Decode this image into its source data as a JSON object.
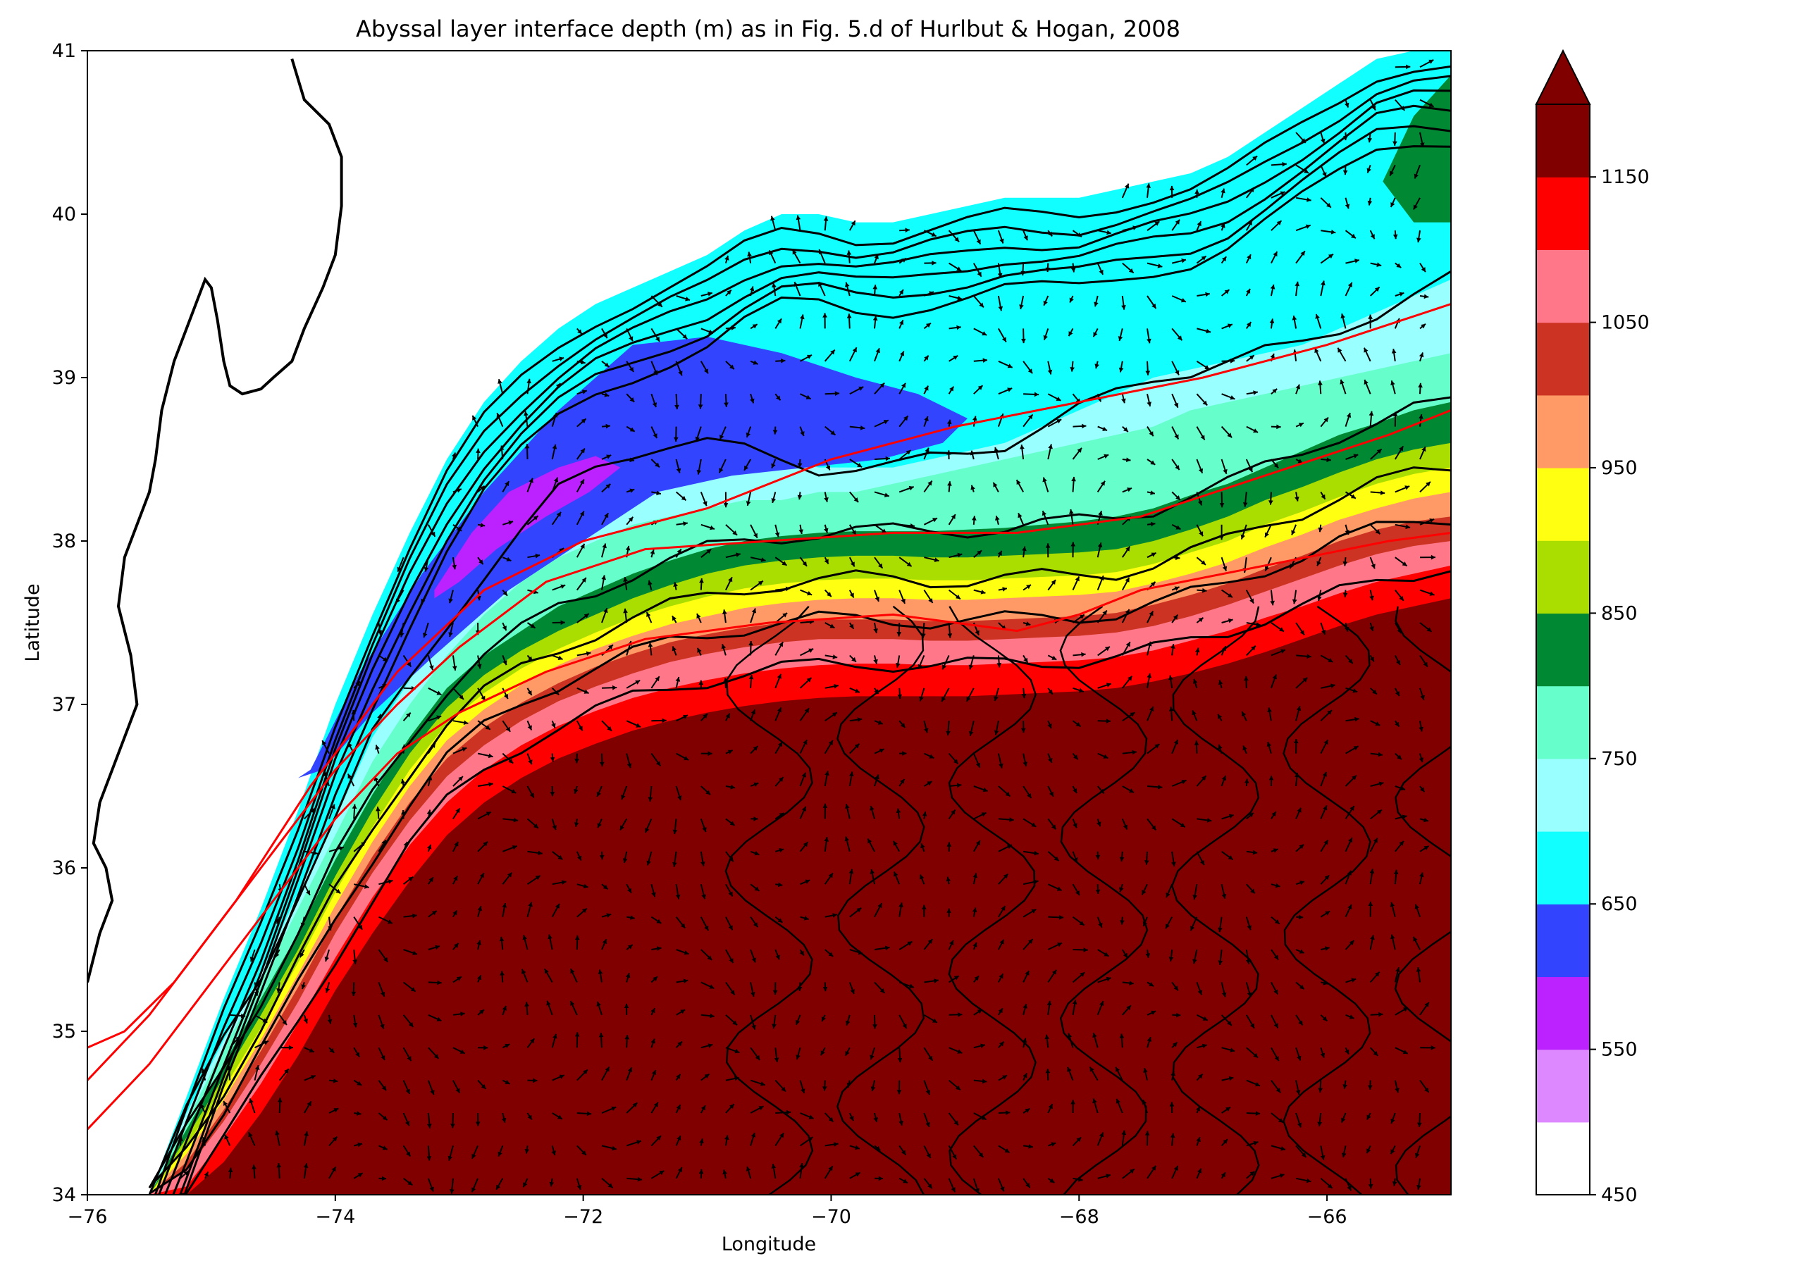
{
  "chart_data": {
    "type": "heatmap",
    "title": "Abyssal layer interface depth (m) as in Fig. 5.d of Hurlbut & Hogan, 2008",
    "xlabel": "Longitude",
    "ylabel": "Latitude",
    "xlim": [
      -76,
      -65
    ],
    "ylim": [
      34,
      41
    ],
    "xticks": [
      -76,
      -74,
      -72,
      -70,
      -68,
      -66
    ],
    "xtick_labels": [
      "−76",
      "−74",
      "−72",
      "−70",
      "−68",
      "−66"
    ],
    "yticks": [
      34,
      35,
      36,
      37,
      38,
      39,
      40,
      41
    ],
    "ytick_labels": [
      "34",
      "35",
      "36",
      "37",
      "38",
      "39",
      "40",
      "41"
    ],
    "colorbar": {
      "levels": [
        450,
        500,
        550,
        600,
        650,
        700,
        750,
        800,
        850,
        900,
        950,
        1000,
        1050,
        1100,
        1150,
        1200
      ],
      "colors": [
        "#ffffff",
        "#dd88ff",
        "#bb22ff",
        "#3344ff",
        "#11ffff",
        "#99ffff",
        "#66ffcc",
        "#008833",
        "#aade00",
        "#ffff11",
        "#ff9966",
        "#cc3322",
        "#ff7788",
        "#ff0000",
        "#800000"
      ],
      "tick_values": [
        450,
        550,
        650,
        750,
        850,
        950,
        1050,
        1150
      ],
      "tick_labels": [
        "450",
        "550",
        "650",
        "750",
        "850",
        "950",
        "1050",
        "1150"
      ],
      "extend": "max"
    },
    "overlays": [
      "black SSH contours",
      "black velocity vectors",
      "red reference track lines",
      "coastline"
    ],
    "red_lines": [
      {
        "x": [
          -76,
          -75.7,
          -75.3,
          -74.8,
          -74.2,
          -73.5,
          -72.8,
          -72.0,
          -71.0,
          -70.0,
          -69.0,
          -68.0,
          -67.0,
          -66.0,
          -65.0
        ],
        "y": [
          34.9,
          35.0,
          35.3,
          35.8,
          36.5,
          37.2,
          37.7,
          38.0,
          38.2,
          38.5,
          38.7,
          38.85,
          39.0,
          39.2,
          39.45
        ]
      },
      {
        "x": [
          -76,
          -75.5,
          -75.0,
          -74.5,
          -74.0,
          -73.5,
          -73.0,
          -72.3,
          -71.5,
          -70.5,
          -69.5,
          -68.5,
          -67.5,
          -66.5,
          -65.5,
          -65.0
        ],
        "y": [
          34.7,
          35.1,
          35.6,
          36.1,
          36.6,
          37.0,
          37.35,
          37.75,
          37.95,
          38.0,
          38.05,
          38.05,
          38.15,
          38.4,
          38.65,
          38.8
        ]
      },
      {
        "x": [
          -76,
          -75.5,
          -75.0,
          -74.5,
          -74.0,
          -73.5,
          -73.0,
          -72.3,
          -71.5,
          -70.5,
          -69.5,
          -69.0,
          -68.5,
          -68.0,
          -67.5,
          -66.5,
          -65.5,
          -65.0
        ],
        "y": [
          34.4,
          34.8,
          35.3,
          35.8,
          36.3,
          36.7,
          36.95,
          37.2,
          37.4,
          37.5,
          37.55,
          37.5,
          37.45,
          37.55,
          37.7,
          37.85,
          38.0,
          38.05
        ]
      }
    ],
    "bands": {
      "x": [
        -75.5,
        -75.2,
        -74.9,
        -74.6,
        -74.3,
        -74.0,
        -73.7,
        -73.4,
        -73.1,
        -72.8,
        -72.5,
        -72.2,
        -71.9,
        -71.6,
        -71.3,
        -71.0,
        -70.7,
        -70.4,
        -70.1,
        -69.8,
        -69.5,
        -69.2,
        -68.9,
        -68.6,
        -68.3,
        -68.0,
        -67.7,
        -67.4,
        -67.1,
        -66.8,
        -66.5,
        -66.2,
        -65.9,
        -65.6,
        -65.3,
        -65.0
      ],
      "offshore_edge_y": [
        34.0,
        34.6,
        35.2,
        35.75,
        36.35,
        37.0,
        37.55,
        38.05,
        38.5,
        38.85,
        39.1,
        39.3,
        39.45,
        39.55,
        39.65,
        39.75,
        39.9,
        40.0,
        40.0,
        39.95,
        39.95,
        40.0,
        40.05,
        40.1,
        40.1,
        40.1,
        40.15,
        40.2,
        40.25,
        40.35,
        40.5,
        40.65,
        40.8,
        40.95,
        41.0,
        41.0
      ],
      "level_650_y": [
        34.0,
        34.55,
        35.0,
        35.45,
        35.95,
        36.5,
        37.05,
        37.5,
        37.9,
        38.2,
        38.5,
        38.7,
        38.85,
        38.95,
        39.0,
        39.05,
        39.05,
        39.0,
        38.95,
        38.9,
        38.8,
        38.75,
        38.8,
        38.9,
        39.0,
        39.05,
        39.1,
        39.15,
        39.25,
        39.35,
        39.45,
        39.55,
        39.7,
        39.85,
        40.0,
        40.15
      ],
      "level_700_y": [
        34.0,
        34.5,
        34.95,
        35.35,
        35.85,
        36.3,
        36.8,
        37.15,
        37.5,
        37.8,
        38.05,
        38.3,
        38.45,
        38.55,
        38.6,
        38.6,
        38.55,
        38.5,
        38.45,
        38.45,
        38.45,
        38.5,
        38.55,
        38.6,
        38.7,
        38.8,
        38.9,
        39.0,
        39.05,
        39.1,
        39.15,
        39.2,
        39.3,
        39.4,
        39.5,
        39.6
      ],
      "level_750_y": [
        34.0,
        34.45,
        34.9,
        35.3,
        35.75,
        36.2,
        36.65,
        37.0,
        37.3,
        37.55,
        37.75,
        37.9,
        38.0,
        38.1,
        38.15,
        38.2,
        38.25,
        38.25,
        38.3,
        38.3,
        38.35,
        38.4,
        38.45,
        38.5,
        38.55,
        38.6,
        38.65,
        38.7,
        38.8,
        38.85,
        38.9,
        38.95,
        39.0,
        39.05,
        39.1,
        39.15
      ],
      "level_800_y": [
        34.0,
        34.4,
        34.8,
        35.2,
        35.6,
        36.05,
        36.45,
        36.8,
        37.1,
        37.3,
        37.45,
        37.6,
        37.7,
        37.8,
        37.88,
        37.95,
        38.0,
        38.03,
        38.05,
        38.06,
        38.06,
        38.06,
        38.07,
        38.08,
        38.1,
        38.12,
        38.15,
        38.2,
        38.28,
        38.35,
        38.45,
        38.55,
        38.65,
        38.72,
        38.8,
        38.85
      ],
      "level_850_y": [
        34.0,
        34.35,
        34.72,
        35.1,
        35.5,
        35.95,
        36.35,
        36.7,
        36.98,
        37.18,
        37.33,
        37.45,
        37.55,
        37.65,
        37.73,
        37.8,
        37.85,
        37.88,
        37.9,
        37.91,
        37.91,
        37.9,
        37.9,
        37.91,
        37.92,
        37.93,
        37.95,
        38.0,
        38.07,
        38.15,
        38.25,
        38.33,
        38.42,
        38.5,
        38.56,
        38.6
      ],
      "level_900_y": [
        34.0,
        34.3,
        34.65,
        35.02,
        35.42,
        35.85,
        36.25,
        36.6,
        36.88,
        37.07,
        37.22,
        37.34,
        37.44,
        37.53,
        37.6,
        37.66,
        37.71,
        37.74,
        37.76,
        37.77,
        37.77,
        37.76,
        37.76,
        37.77,
        37.78,
        37.79,
        37.81,
        37.86,
        37.93,
        38.0,
        38.1,
        38.18,
        38.27,
        38.35,
        38.41,
        38.45
      ],
      "level_950_y": [
        34.0,
        34.25,
        34.58,
        34.95,
        35.35,
        35.77,
        36.16,
        36.5,
        36.78,
        36.97,
        37.12,
        37.24,
        37.34,
        37.42,
        37.49,
        37.54,
        37.59,
        37.62,
        37.64,
        37.65,
        37.65,
        37.64,
        37.64,
        37.65,
        37.66,
        37.67,
        37.69,
        37.74,
        37.8,
        37.87,
        37.96,
        38.04,
        38.13,
        38.2,
        38.26,
        38.3
      ],
      "level_1000_y": [
        34.0,
        34.2,
        34.52,
        34.88,
        35.27,
        35.69,
        36.07,
        36.4,
        36.67,
        36.86,
        37.01,
        37.13,
        37.23,
        37.31,
        37.38,
        37.43,
        37.47,
        37.5,
        37.52,
        37.52,
        37.52,
        37.51,
        37.51,
        37.52,
        37.53,
        37.54,
        37.56,
        37.61,
        37.67,
        37.74,
        37.83,
        37.91,
        38.0,
        38.07,
        38.12,
        38.15
      ],
      "level_1050_y": [
        34.0,
        34.15,
        34.45,
        34.8,
        35.18,
        35.6,
        35.97,
        36.29,
        36.56,
        36.75,
        36.9,
        37.02,
        37.11,
        37.19,
        37.26,
        37.31,
        37.35,
        37.38,
        37.4,
        37.4,
        37.4,
        37.39,
        37.39,
        37.4,
        37.41,
        37.42,
        37.44,
        37.48,
        37.54,
        37.61,
        37.69,
        37.77,
        37.85,
        37.92,
        37.97,
        38.0
      ],
      "level_1100_y": [
        34.0,
        34.05,
        34.35,
        34.68,
        35.05,
        35.45,
        35.82,
        36.14,
        36.4,
        36.6,
        36.75,
        36.87,
        36.96,
        37.04,
        37.1,
        37.15,
        37.19,
        37.22,
        37.24,
        37.25,
        37.25,
        37.24,
        37.24,
        37.25,
        37.26,
        37.27,
        37.29,
        37.33,
        37.39,
        37.45,
        37.53,
        37.6,
        37.68,
        37.75,
        37.8,
        37.85
      ],
      "level_1150_y": [
        34.0,
        34.0,
        34.2,
        34.5,
        34.85,
        35.25,
        35.6,
        35.92,
        36.2,
        36.4,
        36.55,
        36.67,
        36.76,
        36.84,
        36.9,
        36.95,
        36.99,
        37.02,
        37.04,
        37.05,
        37.05,
        37.05,
        37.05,
        37.06,
        37.07,
        37.08,
        37.1,
        37.14,
        37.19,
        37.25,
        37.32,
        37.4,
        37.48,
        37.55,
        37.6,
        37.65
      ]
    },
    "features": {
      "low_650_region": {
        "x": [
          -74.2,
          -73.8,
          -73.3,
          -72.8,
          -72.2,
          -71.6,
          -71.0,
          -70.4,
          -69.8,
          -69.3,
          -68.9,
          -69.1,
          -69.6,
          -70.2,
          -70.8,
          -71.4,
          -72.0,
          -72.6,
          -73.2,
          -73.7,
          -74.1,
          -74.3
        ],
        "y": [
          36.6,
          37.2,
          37.8,
          38.3,
          38.8,
          39.2,
          39.25,
          39.15,
          39.0,
          38.9,
          38.75,
          38.6,
          38.5,
          38.45,
          38.4,
          38.3,
          38.0,
          37.7,
          37.3,
          36.95,
          36.6,
          36.55
        ]
      },
      "low_600_region": {
        "x": [
          -73.2,
          -72.9,
          -72.6,
          -72.2,
          -71.9,
          -71.7,
          -71.95,
          -72.3,
          -72.7,
          -73.0,
          -73.2
        ],
        "y": [
          37.7,
          38.05,
          38.3,
          38.45,
          38.52,
          38.45,
          38.3,
          38.15,
          37.95,
          37.75,
          37.65
        ]
      },
      "high_800_patch": {
        "x": [
          -65.55,
          -65.3,
          -65.0,
          -65.0,
          -65.3,
          -65.55
        ],
        "y": [
          40.2,
          40.6,
          40.85,
          39.95,
          39.95,
          40.2
        ]
      },
      "coastline": {
        "x": [
          -74.35,
          -74.25,
          -74.05,
          -73.95,
          -73.95,
          -74.0,
          -74.1,
          -74.25,
          -74.35,
          -74.5,
          -74.6,
          -74.75,
          -74.85,
          -74.9,
          -74.95,
          -75.0,
          -75.05,
          -75.15,
          -75.3,
          -75.4,
          -75.45,
          -75.5,
          -75.6,
          -75.7,
          -75.75,
          -75.65,
          -75.6,
          -75.7,
          -75.8,
          -75.9,
          -75.95,
          -75.85,
          -75.8,
          -75.9,
          -75.95,
          -76.0
        ],
        "y": [
          40.95,
          40.7,
          40.55,
          40.35,
          40.05,
          39.75,
          39.55,
          39.3,
          39.1,
          39.0,
          38.93,
          38.9,
          38.95,
          39.1,
          39.35,
          39.55,
          39.6,
          39.4,
          39.1,
          38.8,
          38.5,
          38.3,
          38.1,
          37.9,
          37.6,
          37.3,
          37.0,
          36.8,
          36.6,
          36.4,
          36.15,
          36.0,
          35.8,
          35.6,
          35.45,
          35.3
        ]
      }
    }
  }
}
